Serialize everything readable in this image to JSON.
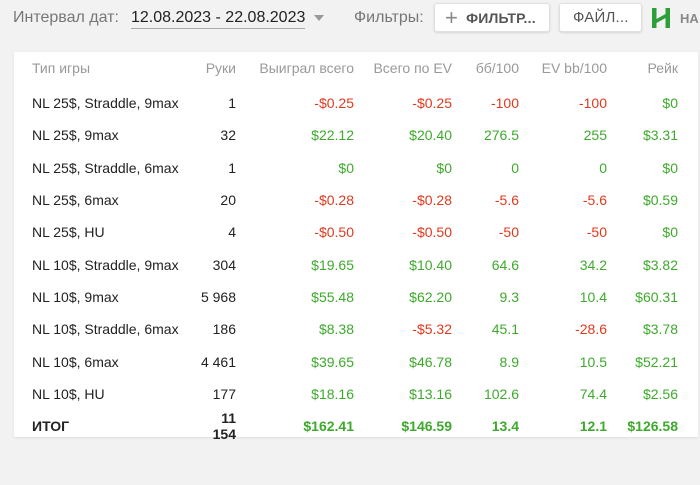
{
  "toolbar": {
    "date_label": "Интервал дат:",
    "date_range": "12.08.2023 - 22.08.2023",
    "filters_label": "Фильтры:",
    "filter_button": "ФИЛЬТР...",
    "files_button": "ФАЙЛ...",
    "logo_text": "НА"
  },
  "colors": {
    "negative": "#e03a1e",
    "positive": "#3daa2c",
    "brand": "#2e9e3a"
  },
  "table": {
    "headers": [
      "Тип игры",
      "Руки",
      "Выиграл всего",
      "Всего по EV",
      "бб/100",
      "EV bb/100",
      "Рейк"
    ],
    "rows": [
      {
        "game": "NL 25$, Straddle, 9max",
        "hands": "1",
        "won": "-$0.25",
        "ev": "-$0.25",
        "bb100": "-100",
        "evbb100": "-100",
        "rake": "$0"
      },
      {
        "game": "NL 25$, 9max",
        "hands": "32",
        "won": "$22.12",
        "ev": "$20.40",
        "bb100": "276.5",
        "evbb100": "255",
        "rake": "$3.31"
      },
      {
        "game": "NL 25$, Straddle, 6max",
        "hands": "1",
        "won": "$0",
        "ev": "$0",
        "bb100": "0",
        "evbb100": "0",
        "rake": "$0"
      },
      {
        "game": "NL 25$, 6max",
        "hands": "20",
        "won": "-$0.28",
        "ev": "-$0.28",
        "bb100": "-5.6",
        "evbb100": "-5.6",
        "rake": "$0.59"
      },
      {
        "game": "NL 25$, HU",
        "hands": "4",
        "won": "-$0.50",
        "ev": "-$0.50",
        "bb100": "-50",
        "evbb100": "-50",
        "rake": "$0"
      },
      {
        "game": "NL 10$, Straddle, 9max",
        "hands": "304",
        "won": "$19.65",
        "ev": "$10.40",
        "bb100": "64.6",
        "evbb100": "34.2",
        "rake": "$3.82"
      },
      {
        "game": "NL 10$, 9max",
        "hands": "5 968",
        "won": "$55.48",
        "ev": "$62.20",
        "bb100": "9.3",
        "evbb100": "10.4",
        "rake": "$60.31"
      },
      {
        "game": "NL 10$, Straddle, 6max",
        "hands": "186",
        "won": "$8.38",
        "ev": "-$5.32",
        "bb100": "45.1",
        "evbb100": "-28.6",
        "rake": "$3.78"
      },
      {
        "game": "NL 10$, 6max",
        "hands": "4 461",
        "won": "$39.65",
        "ev": "$46.78",
        "bb100": "8.9",
        "evbb100": "10.5",
        "rake": "$52.21"
      },
      {
        "game": "NL 10$, HU",
        "hands": "177",
        "won": "$18.16",
        "ev": "$13.16",
        "bb100": "102.6",
        "evbb100": "74.4",
        "rake": "$2.56"
      }
    ],
    "total": {
      "game": "ИТОГ",
      "hands": "11 154",
      "won": "$162.41",
      "ev": "$146.59",
      "bb100": "13.4",
      "evbb100": "12.1",
      "rake": "$126.58"
    }
  }
}
